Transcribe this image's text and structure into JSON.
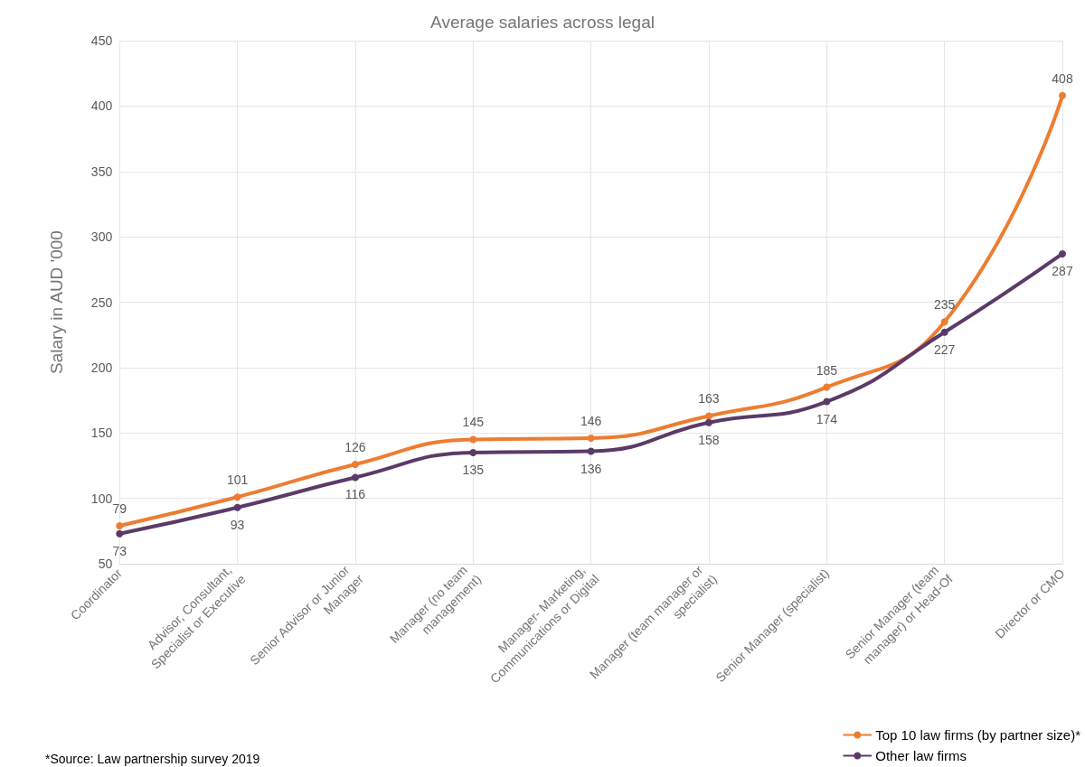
{
  "chart_data": {
    "type": "line",
    "title": "Average salaries across legal",
    "ylabel": "Salary in AUD '000",
    "categories": [
      "Coordinator",
      "Advisor, Consultant, Specialist or Executive",
      "Senior Advisor or Junior Manager",
      "Manager (no team management)",
      "Manager- Marketing, Communications or Digital",
      "Manager (team manager or specialist)",
      "Senior Manager (specialist)",
      "Senior Manager (team manager) or Head-Of",
      "Director or CMO"
    ],
    "series": [
      {
        "name": "Top 10 law firms (by partner size)*",
        "color": "#ed7d31",
        "values": [
          79,
          101,
          126,
          145,
          146,
          163,
          185,
          235,
          408
        ]
      },
      {
        "name": "Other law firms",
        "color": "#5b3a68",
        "values": [
          73,
          93,
          116,
          135,
          136,
          158,
          174,
          227,
          287
        ]
      }
    ],
    "ylim": [
      50,
      450
    ],
    "yticks": [
      50,
      100,
      150,
      200,
      250,
      300,
      350,
      400,
      450
    ],
    "grid": true,
    "legend": "bottom right",
    "marker": "circle",
    "line_style": "solid",
    "data_labels": true,
    "annotations": [
      "*Source: Law partnership survey 2019"
    ]
  }
}
